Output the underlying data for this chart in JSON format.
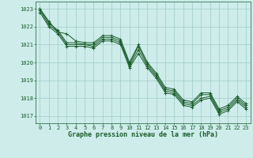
{
  "title": "Graphe pression niveau de la mer (hPa)",
  "bg_color": "#cdecea",
  "grid_color": "#a0ccc8",
  "line_color": "#1a5c2a",
  "xlim": [
    -0.5,
    23.5
  ],
  "ylim": [
    1016.6,
    1023.4
  ],
  "yticks": [
    1017,
    1018,
    1019,
    1020,
    1021,
    1022,
    1023
  ],
  "xticks": [
    0,
    1,
    2,
    3,
    4,
    5,
    6,
    7,
    8,
    9,
    10,
    11,
    12,
    13,
    14,
    15,
    16,
    17,
    18,
    19,
    20,
    21,
    22,
    23
  ],
  "series": [
    [
      1023.0,
      1022.2,
      1021.8,
      1021.1,
      1021.1,
      1021.0,
      1021.0,
      1021.4,
      1021.4,
      1021.2,
      1019.9,
      1020.9,
      1019.9,
      1019.3,
      1018.5,
      1018.4,
      1017.8,
      1017.7,
      1018.2,
      1018.2,
      1017.3,
      1017.5,
      1018.0,
      1017.6
    ],
    [
      1023.0,
      1022.3,
      1021.7,
      1021.6,
      1021.2,
      1021.1,
      1021.1,
      1021.5,
      1021.5,
      1021.3,
      1020.0,
      1021.0,
      1020.0,
      1019.4,
      1018.6,
      1018.5,
      1017.9,
      1017.8,
      1018.3,
      1018.3,
      1017.4,
      1017.6,
      1018.1,
      1017.7
    ],
    [
      1022.9,
      1022.1,
      1021.7,
      1021.0,
      1021.0,
      1021.0,
      1020.9,
      1021.3,
      1021.3,
      1021.1,
      1019.8,
      1020.7,
      1019.8,
      1019.2,
      1018.4,
      1018.3,
      1017.7,
      1017.6,
      1018.0,
      1018.1,
      1017.2,
      1017.4,
      1017.9,
      1017.5
    ],
    [
      1022.8,
      1022.0,
      1021.6,
      1020.9,
      1020.9,
      1020.9,
      1020.8,
      1021.2,
      1021.2,
      1021.0,
      1019.7,
      1020.5,
      1019.7,
      1019.1,
      1018.3,
      1018.2,
      1017.6,
      1017.5,
      1017.9,
      1018.0,
      1017.1,
      1017.3,
      1017.8,
      1017.4
    ]
  ]
}
